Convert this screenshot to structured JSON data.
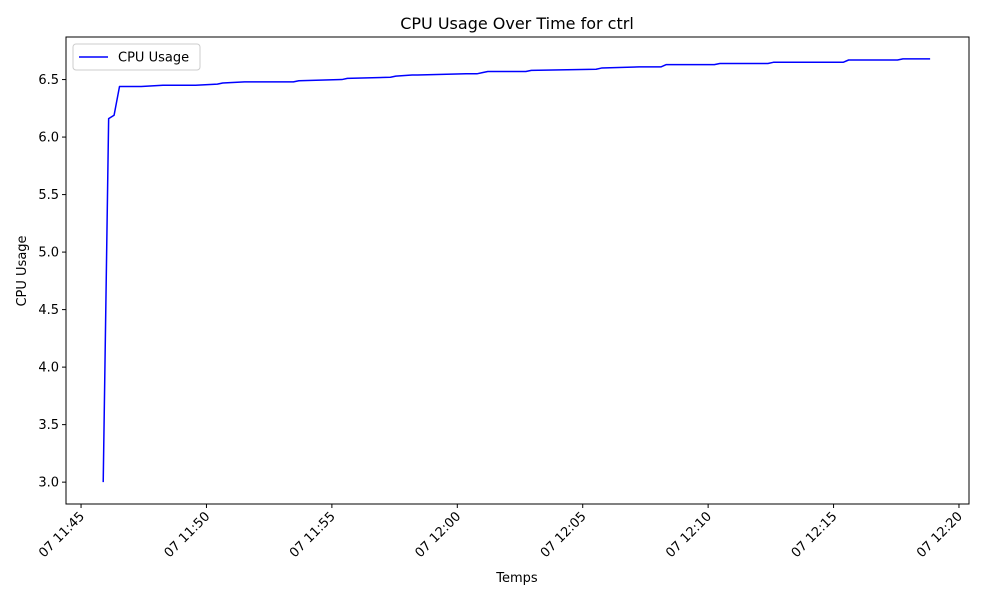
{
  "chart_data": {
    "type": "line",
    "title": "CPU Usage Over Time for ctrl",
    "xlabel": "Temps",
    "ylabel": "CPU Usage",
    "xlim": [
      "07 11:44:24",
      "07 12:20:24"
    ],
    "ylim": [
      2.81,
      6.87
    ],
    "y_ticks": [
      3.0,
      3.5,
      4.0,
      4.5,
      5.0,
      5.5,
      6.0,
      6.5
    ],
    "y_tick_labels": [
      "3.0",
      "3.5",
      "4.0",
      "4.5",
      "5.0",
      "5.5",
      "6.0",
      "6.5"
    ],
    "x_ticks": [
      "07 11:45:00",
      "07 11:50:00",
      "07 11:55:00",
      "07 12:00:00",
      "07 12:05:00",
      "07 12:10:00",
      "07 12:15:00",
      "07 12:20:00"
    ],
    "x_tick_labels": [
      "07 11:45",
      "07 11:50",
      "07 11:55",
      "07 12:00",
      "07 12:05",
      "07 12:10",
      "07 12:15",
      "07 12:20"
    ],
    "grid": false,
    "legend": {
      "position": "top-left",
      "entries": [
        "CPU Usage"
      ]
    },
    "series": [
      {
        "name": "CPU Usage",
        "color": "#0000ff",
        "x": [
          "07 11:45:53",
          "07 11:46:06",
          "07 11:46:19",
          "07 11:46:32",
          "07 11:47:24",
          "07 11:48:16",
          "07 11:48:42",
          "07 11:49:34",
          "07 11:50:26",
          "07 11:50:39",
          "07 11:51:31",
          "07 11:52:49",
          "07 11:53:28",
          "07 11:53:41",
          "07 11:55:24",
          "07 11:55:37",
          "07 11:57:20",
          "07 11:57:33",
          "07 11:58:12",
          "07 11:58:25",
          "07 12:00:21",
          "07 12:00:47",
          "07 12:01:00",
          "07 12:01:13",
          "07 12:02:44",
          "07 12:02:57",
          "07 12:05:32",
          "07 12:05:45",
          "07 12:07:15",
          "07 12:08:07",
          "07 12:08:20",
          "07 12:10:15",
          "07 12:10:28",
          "07 12:12:23",
          "07 12:12:36",
          "07 12:13:28",
          "07 12:15:23",
          "07 12:15:36",
          "07 12:16:15",
          "07 12:17:33",
          "07 12:17:46",
          "07 12:18:51"
        ],
        "y": [
          3.0,
          6.16,
          6.19,
          6.44,
          6.44,
          6.45,
          6.45,
          6.45,
          6.46,
          6.47,
          6.48,
          6.48,
          6.48,
          6.49,
          6.5,
          6.51,
          6.52,
          6.53,
          6.54,
          6.54,
          6.55,
          6.55,
          6.56,
          6.57,
          6.57,
          6.58,
          6.59,
          6.6,
          6.61,
          6.61,
          6.63,
          6.63,
          6.64,
          6.64,
          6.65,
          6.65,
          6.65,
          6.67,
          6.67,
          6.67,
          6.68,
          6.68
        ]
      }
    ]
  }
}
